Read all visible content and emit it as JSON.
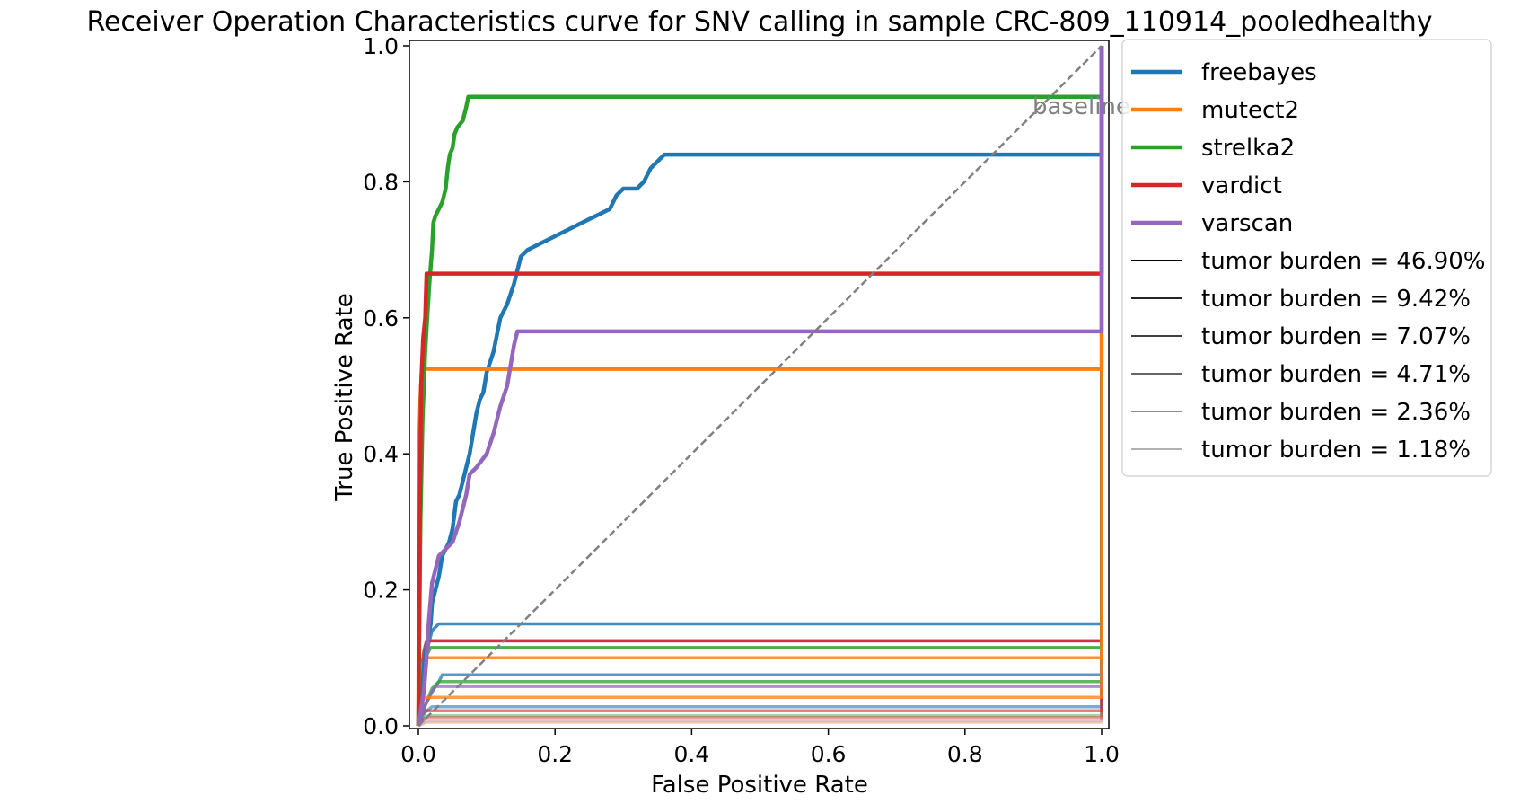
{
  "chart_data": {
    "type": "line",
    "title": "Receiver Operation Characteristics curve for SNV calling in sample CRC-809_110914_pooledhealthy",
    "xlabel": "False Positive Rate",
    "ylabel": "True Positive Rate",
    "xlim": [
      0.0,
      1.0
    ],
    "ylim": [
      0.0,
      1.0
    ],
    "xticks": [
      "0.0",
      "0.2",
      "0.4",
      "0.6",
      "0.8",
      "1.0"
    ],
    "yticks": [
      "0.0",
      "0.2",
      "0.4",
      "0.6",
      "0.8",
      "1.0"
    ],
    "grid": false,
    "legend_position": "outside-right",
    "baseline": {
      "label": "baseline",
      "color": "#808080",
      "points": [
        [
          0,
          0
        ],
        [
          1,
          1
        ]
      ]
    },
    "tools": [
      {
        "name": "freebayes",
        "color": "#1f77b4"
      },
      {
        "name": "mutect2",
        "color": "#ff7f0e"
      },
      {
        "name": "strelka2",
        "color": "#2ca02c"
      },
      {
        "name": "vardict",
        "color": "#d62728"
      },
      {
        "name": "varscan",
        "color": "#9467bd"
      }
    ],
    "burdens": [
      {
        "label": "tumor burden = 46.90%",
        "alpha": 1.0
      },
      {
        "label": "tumor burden = 9.42%",
        "alpha": 0.85
      },
      {
        "label": "tumor burden = 7.07%",
        "alpha": 0.75
      },
      {
        "label": "tumor burden = 4.71%",
        "alpha": 0.6
      },
      {
        "label": "tumor burden = 2.36%",
        "alpha": 0.45
      },
      {
        "label": "tumor burden = 1.18%",
        "alpha": 0.3
      }
    ],
    "series": [
      {
        "tool": "freebayes",
        "burden": 0,
        "points": [
          [
            0,
            0
          ],
          [
            0.005,
            0.04
          ],
          [
            0.008,
            0.09
          ],
          [
            0.012,
            0.12
          ],
          [
            0.018,
            0.15
          ],
          [
            0.02,
            0.18
          ],
          [
            0.025,
            0.2
          ],
          [
            0.03,
            0.22
          ],
          [
            0.035,
            0.25
          ],
          [
            0.04,
            0.26
          ],
          [
            0.045,
            0.27
          ],
          [
            0.05,
            0.29
          ],
          [
            0.055,
            0.33
          ],
          [
            0.06,
            0.34
          ],
          [
            0.065,
            0.36
          ],
          [
            0.07,
            0.38
          ],
          [
            0.075,
            0.4
          ],
          [
            0.08,
            0.43
          ],
          [
            0.085,
            0.46
          ],
          [
            0.09,
            0.48
          ],
          [
            0.095,
            0.49
          ],
          [
            0.1,
            0.52
          ],
          [
            0.11,
            0.55
          ],
          [
            0.12,
            0.6
          ],
          [
            0.13,
            0.62
          ],
          [
            0.14,
            0.65
          ],
          [
            0.145,
            0.67
          ],
          [
            0.15,
            0.69
          ],
          [
            0.16,
            0.7
          ],
          [
            0.18,
            0.71
          ],
          [
            0.2,
            0.72
          ],
          [
            0.22,
            0.73
          ],
          [
            0.24,
            0.74
          ],
          [
            0.26,
            0.75
          ],
          [
            0.28,
            0.76
          ],
          [
            0.29,
            0.78
          ],
          [
            0.3,
            0.79
          ],
          [
            0.32,
            0.79
          ],
          [
            0.33,
            0.8
          ],
          [
            0.34,
            0.82
          ],
          [
            0.35,
            0.83
          ],
          [
            0.36,
            0.84
          ],
          [
            1.0,
            0.84
          ],
          [
            1.0,
            1.0
          ]
        ]
      },
      {
        "tool": "mutect2",
        "burden": 0,
        "points": [
          [
            0,
            0
          ],
          [
            0.001,
            0.41
          ],
          [
            0.003,
            0.48
          ],
          [
            0.005,
            0.52
          ],
          [
            0.01,
            0.525
          ],
          [
            1.0,
            0.525
          ],
          [
            1.0,
            1.0
          ]
        ]
      },
      {
        "tool": "strelka2",
        "burden": 0,
        "points": [
          [
            0,
            0
          ],
          [
            0.003,
            0.3
          ],
          [
            0.006,
            0.45
          ],
          [
            0.01,
            0.55
          ],
          [
            0.013,
            0.6
          ],
          [
            0.016,
            0.65
          ],
          [
            0.02,
            0.7
          ],
          [
            0.022,
            0.74
          ],
          [
            0.025,
            0.75
          ],
          [
            0.03,
            0.76
          ],
          [
            0.035,
            0.77
          ],
          [
            0.04,
            0.79
          ],
          [
            0.043,
            0.82
          ],
          [
            0.046,
            0.84
          ],
          [
            0.05,
            0.85
          ],
          [
            0.053,
            0.87
          ],
          [
            0.057,
            0.88
          ],
          [
            0.065,
            0.89
          ],
          [
            0.07,
            0.91
          ],
          [
            0.073,
            0.925
          ],
          [
            1.0,
            0.925
          ],
          [
            1.0,
            1.0
          ]
        ]
      },
      {
        "tool": "vardict",
        "burden": 0,
        "points": [
          [
            0,
            0
          ],
          [
            0.002,
            0.3
          ],
          [
            0.004,
            0.5
          ],
          [
            0.007,
            0.57
          ],
          [
            0.01,
            0.6
          ],
          [
            0.012,
            0.665
          ],
          [
            1.0,
            0.665
          ],
          [
            1.0,
            1.0
          ]
        ]
      },
      {
        "tool": "varscan",
        "burden": 0,
        "points": [
          [
            0,
            0
          ],
          [
            0.008,
            0.05
          ],
          [
            0.012,
            0.1
          ],
          [
            0.015,
            0.15
          ],
          [
            0.02,
            0.21
          ],
          [
            0.03,
            0.25
          ],
          [
            0.04,
            0.26
          ],
          [
            0.05,
            0.27
          ],
          [
            0.06,
            0.3
          ],
          [
            0.07,
            0.34
          ],
          [
            0.075,
            0.37
          ],
          [
            0.085,
            0.38
          ],
          [
            0.1,
            0.4
          ],
          [
            0.11,
            0.43
          ],
          [
            0.12,
            0.47
          ],
          [
            0.13,
            0.5
          ],
          [
            0.14,
            0.56
          ],
          [
            0.145,
            0.58
          ],
          [
            1.0,
            0.58
          ],
          [
            1.0,
            1.0
          ]
        ]
      },
      {
        "tool": "freebayes",
        "burden": 1,
        "points": [
          [
            0,
            0
          ],
          [
            0.005,
            0.05
          ],
          [
            0.01,
            0.09
          ],
          [
            0.015,
            0.12
          ],
          [
            0.02,
            0.14
          ],
          [
            0.03,
            0.15
          ],
          [
            1.0,
            0.15
          ],
          [
            1.0,
            1.0
          ]
        ]
      },
      {
        "tool": "varscan",
        "burden": 1,
        "points": [
          [
            0,
            0
          ],
          [
            0.005,
            0.06
          ],
          [
            0.01,
            0.1
          ],
          [
            0.015,
            0.125
          ],
          [
            1.0,
            0.125
          ],
          [
            1.0,
            1.0
          ]
        ]
      },
      {
        "tool": "vardict",
        "burden": 1,
        "points": [
          [
            0,
            0
          ],
          [
            0.004,
            0.08
          ],
          [
            0.008,
            0.11
          ],
          [
            0.012,
            0.125
          ],
          [
            1.0,
            0.125
          ],
          [
            1.0,
            1.0
          ]
        ]
      },
      {
        "tool": "strelka2",
        "burden": 1,
        "points": [
          [
            0,
            0
          ],
          [
            0.004,
            0.06
          ],
          [
            0.01,
            0.1
          ],
          [
            0.018,
            0.115
          ],
          [
            1.0,
            0.115
          ],
          [
            1.0,
            1.0
          ]
        ]
      },
      {
        "tool": "mutect2",
        "burden": 1,
        "points": [
          [
            0,
            0
          ],
          [
            0.003,
            0.05
          ],
          [
            0.006,
            0.09
          ],
          [
            0.01,
            0.1
          ],
          [
            1.0,
            0.1
          ],
          [
            1.0,
            1.0
          ]
        ]
      },
      {
        "tool": "freebayes",
        "burden": 2,
        "points": [
          [
            0,
            0
          ],
          [
            0.01,
            0.03
          ],
          [
            0.02,
            0.05
          ],
          [
            0.03,
            0.065
          ],
          [
            0.035,
            0.075
          ],
          [
            1.0,
            0.075
          ],
          [
            1.0,
            1.0
          ]
        ]
      },
      {
        "tool": "strelka2",
        "burden": 2,
        "points": [
          [
            0,
            0
          ],
          [
            0.01,
            0.03
          ],
          [
            0.02,
            0.055
          ],
          [
            0.03,
            0.065
          ],
          [
            1.0,
            0.065
          ],
          [
            1.0,
            1.0
          ]
        ]
      },
      {
        "tool": "varscan",
        "burden": 2,
        "points": [
          [
            0,
            0
          ],
          [
            0.01,
            0.03
          ],
          [
            0.02,
            0.05
          ],
          [
            0.025,
            0.058
          ],
          [
            1.0,
            0.058
          ],
          [
            1.0,
            1.0
          ]
        ]
      },
      {
        "tool": "mutect2",
        "burden": 2,
        "points": [
          [
            0,
            0
          ],
          [
            0.004,
            0.025
          ],
          [
            0.008,
            0.04
          ],
          [
            0.012,
            0.042
          ],
          [
            1.0,
            0.042
          ],
          [
            1.0,
            1.0
          ]
        ]
      },
      {
        "tool": "freebayes",
        "burden": 3,
        "points": [
          [
            0,
            0
          ],
          [
            0.01,
            0.02
          ],
          [
            0.02,
            0.028
          ],
          [
            1.0,
            0.028
          ],
          [
            1.0,
            1.0
          ]
        ]
      },
      {
        "tool": "vardict",
        "burden": 3,
        "points": [
          [
            0,
            0
          ],
          [
            0.005,
            0.015
          ],
          [
            0.01,
            0.022
          ],
          [
            1.0,
            0.022
          ],
          [
            1.0,
            1.0
          ]
        ]
      },
      {
        "tool": "strelka2",
        "burden": 4,
        "points": [
          [
            0,
            0
          ],
          [
            0.008,
            0.01
          ],
          [
            0.015,
            0.015
          ],
          [
            1.0,
            0.015
          ],
          [
            1.0,
            1.0
          ]
        ]
      },
      {
        "tool": "vardict",
        "burden": 4,
        "points": [
          [
            0,
            0
          ],
          [
            0.006,
            0.008
          ],
          [
            0.012,
            0.012
          ],
          [
            1.0,
            0.012
          ],
          [
            1.0,
            1.0
          ]
        ]
      },
      {
        "tool": "mutect2",
        "burden": 5,
        "points": [
          [
            0,
            0
          ],
          [
            0.005,
            0.003
          ],
          [
            0.01,
            0.005
          ],
          [
            1.0,
            0.005
          ],
          [
            1.0,
            1.0
          ]
        ]
      },
      {
        "tool": "varscan",
        "burden": 5,
        "points": [
          [
            0,
            0
          ],
          [
            0.008,
            0.004
          ],
          [
            0.012,
            0.007
          ],
          [
            1.0,
            0.007
          ],
          [
            1.0,
            1.0
          ]
        ]
      }
    ]
  }
}
